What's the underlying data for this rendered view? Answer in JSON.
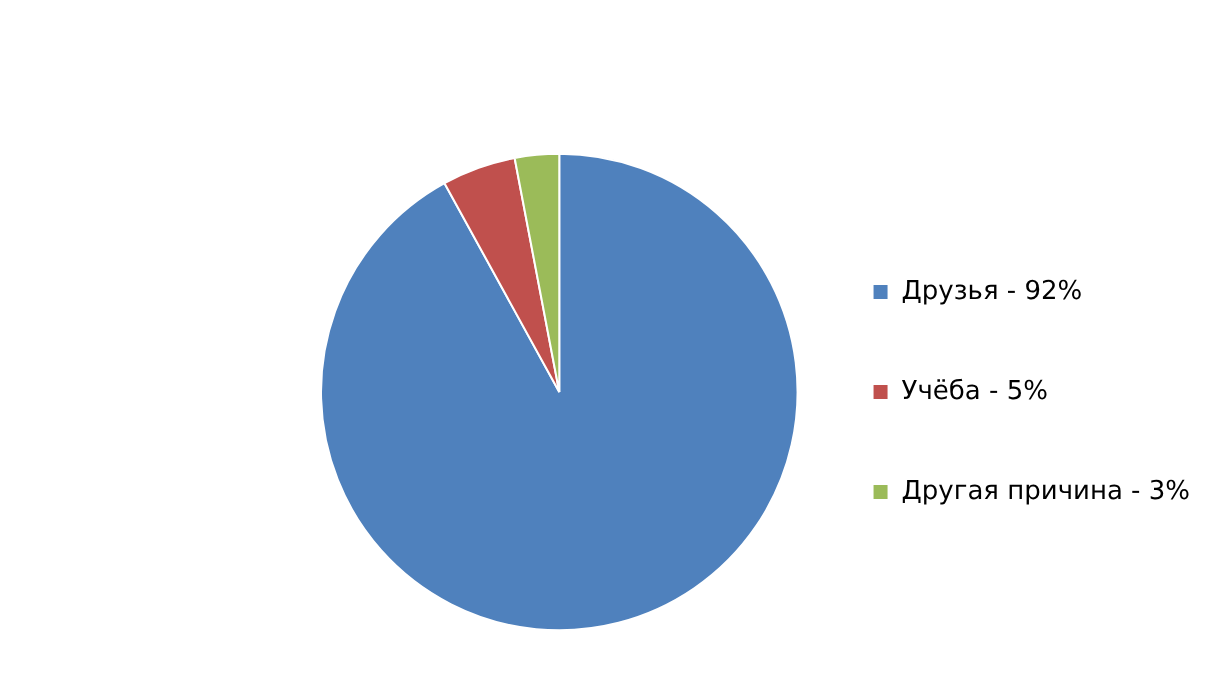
{
  "chart_data": {
    "type": "pie",
    "categories": [
      "Друзья - 92%",
      "Учёба - 5%",
      "Другая причина - 3%"
    ],
    "values": [
      92,
      5,
      3
    ],
    "colors": [
      "#4f81bd",
      "#c0504d",
      "#9bbb59"
    ],
    "legend": "right"
  }
}
